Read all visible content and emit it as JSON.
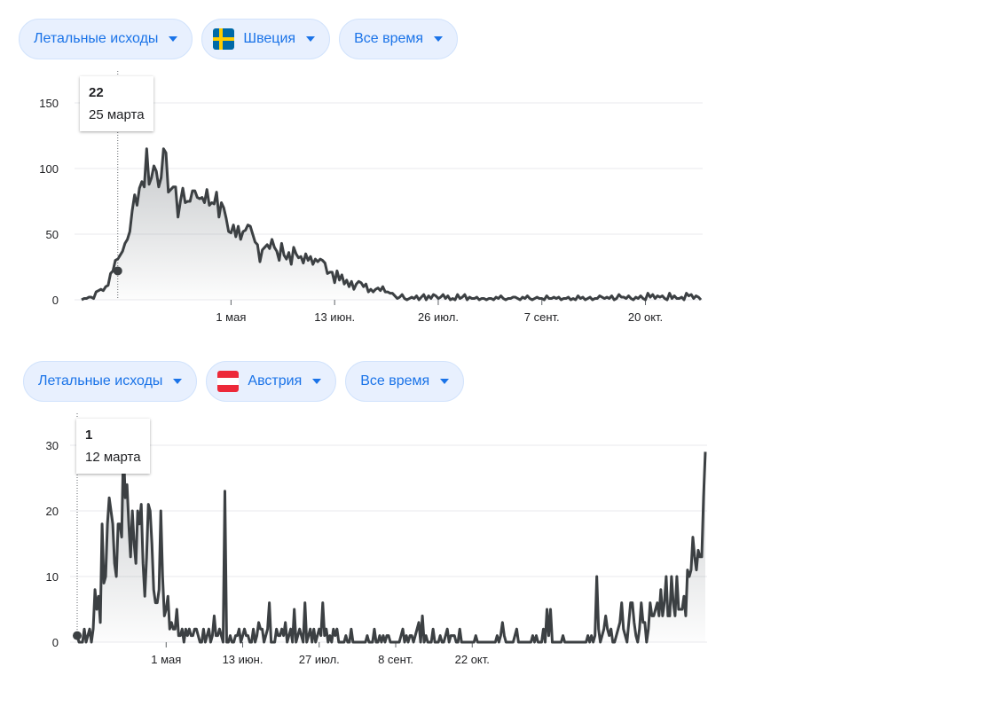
{
  "panels": [
    {
      "metric_label": "Летальные исходы",
      "country_label": "Швеция",
      "country_flag": "sweden-flag",
      "period_label": "Все время",
      "tooltip": {
        "value": "22",
        "date": "25 марта"
      }
    },
    {
      "metric_label": "Летальные исходы",
      "country_label": "Австрия",
      "country_flag": "austria-flag",
      "period_label": "Все время",
      "tooltip": {
        "value": "1",
        "date": "12 марта"
      }
    }
  ],
  "colors": {
    "accent": "#1a73e8",
    "chip_bg": "#e8f0fe",
    "line": "#3c4043",
    "grid": "#e8eaed"
  },
  "chart_data": [
    {
      "type": "area",
      "ylim": [
        0,
        150
      ],
      "yticks": [
        0,
        50,
        100,
        150
      ],
      "xticks": [
        {
          "x": 62,
          "label": "1 мая"
        },
        {
          "x": 105,
          "label": "13 июн."
        },
        {
          "x": 148,
          "label": "26 июл."
        },
        {
          "x": 191,
          "label": "7 сент."
        },
        {
          "x": 234,
          "label": "20 окт."
        }
      ],
      "highlight": {
        "x": 15,
        "y": 22
      },
      "series": [
        {
          "values": [
            0,
            1,
            1,
            2,
            2,
            1,
            6,
            7,
            8,
            7,
            10,
            11,
            20,
            22,
            30,
            31,
            34,
            37,
            43,
            46,
            52,
            68,
            80,
            72,
            85,
            90,
            86,
            115,
            88,
            93,
            102,
            98,
            86,
            93,
            115,
            112,
            82,
            84,
            86,
            86,
            63,
            75,
            85,
            74,
            75,
            75,
            83,
            83,
            78,
            77,
            78,
            74,
            84,
            72,
            74,
            73,
            82,
            63,
            74,
            70,
            62,
            52,
            51,
            57,
            48,
            56,
            46,
            52,
            53,
            57,
            56,
            50,
            44,
            42,
            29,
            38,
            40,
            42,
            39,
            46,
            40,
            37,
            30,
            43,
            34,
            31,
            36,
            27,
            40,
            35,
            32,
            33,
            28,
            35,
            30,
            33,
            27,
            31,
            29,
            31,
            30,
            28,
            20,
            21,
            21,
            13,
            22,
            15,
            19,
            12,
            15,
            10,
            14,
            8,
            12,
            14,
            13,
            10,
            12,
            6,
            8,
            6,
            8,
            9,
            7,
            10,
            6,
            6,
            5,
            5,
            3,
            1,
            2,
            4,
            1,
            0,
            1,
            2,
            1,
            3,
            0,
            2,
            4,
            0,
            3,
            1,
            4,
            3,
            1,
            2,
            4,
            1,
            3,
            0,
            1,
            0,
            4,
            1,
            2,
            4,
            0,
            2,
            1,
            1,
            2,
            0,
            1,
            1,
            0,
            1,
            1,
            0,
            2,
            1,
            3,
            1,
            0,
            1,
            1,
            2,
            2,
            1,
            0,
            2,
            1,
            3,
            1,
            0,
            1,
            2,
            1,
            1,
            0,
            3,
            1,
            1,
            2,
            1,
            2,
            0,
            1,
            1,
            2,
            0,
            1,
            0,
            3,
            1,
            2,
            0,
            1,
            2,
            0,
            1,
            1,
            3,
            2,
            1,
            2,
            1,
            3,
            0,
            1,
            4,
            2,
            2,
            1,
            3,
            1,
            0,
            2,
            1,
            3,
            1,
            0,
            5,
            2,
            4,
            1,
            3,
            2,
            3,
            1,
            0,
            5,
            1,
            3,
            1,
            1,
            2,
            0,
            5,
            3,
            4,
            1,
            3,
            2,
            0
          ]
        }
      ]
    },
    {
      "type": "area",
      "ylim": [
        0,
        30
      ],
      "yticks": [
        0,
        10,
        20,
        30
      ],
      "xticks": [
        {
          "x": 50,
          "label": "1 мая"
        },
        {
          "x": 93,
          "label": "13 июн."
        },
        {
          "x": 136,
          "label": "27 июл."
        },
        {
          "x": 179,
          "label": "8 сент."
        },
        {
          "x": 222,
          "label": "22 окт."
        }
      ],
      "highlight": {
        "x": 0,
        "y": 1
      },
      "series": [
        {
          "values": [
            1,
            0,
            0,
            0,
            2,
            0,
            1,
            2,
            0,
            2,
            8,
            5,
            7,
            3,
            18,
            9,
            10,
            18,
            22,
            20,
            18,
            12,
            10,
            18,
            18,
            16,
            30,
            22,
            24,
            18,
            13,
            20,
            15,
            12,
            20,
            18,
            21,
            12,
            7,
            13,
            21,
            20,
            15,
            8,
            6,
            6,
            8,
            20,
            10,
            4,
            5,
            7,
            2,
            3,
            2,
            2,
            5,
            1,
            1,
            2,
            0,
            2,
            1,
            2,
            1,
            1,
            2,
            2,
            1,
            0,
            0,
            2,
            0,
            1,
            2,
            0,
            1,
            4,
            1,
            1,
            2,
            1,
            0,
            23,
            0,
            0,
            1,
            0,
            0,
            1,
            1,
            2,
            0,
            1,
            2,
            1,
            1,
            0,
            0,
            2,
            0,
            1,
            3,
            2,
            2,
            0,
            1,
            2,
            6,
            0,
            0,
            0,
            2,
            1,
            1,
            2,
            1,
            3,
            0,
            1,
            2,
            0,
            5,
            0,
            1,
            2,
            1,
            0,
            6,
            0,
            1,
            2,
            0,
            2,
            0,
            1,
            2,
            1,
            6,
            1,
            2,
            0,
            1,
            0,
            2,
            1,
            2,
            0,
            0,
            0,
            0,
            1,
            0,
            0,
            2,
            0,
            0,
            0,
            0,
            0,
            0,
            0,
            0,
            1,
            0,
            0,
            0,
            2,
            0,
            0,
            1,
            0,
            1,
            0,
            1,
            1,
            0,
            0,
            0,
            0,
            0,
            0,
            1,
            2,
            0,
            1,
            0,
            1,
            1,
            0,
            1,
            2,
            3,
            0,
            4,
            0,
            1,
            0,
            0,
            0,
            2,
            0,
            0,
            0,
            1,
            0,
            0,
            1,
            2,
            0,
            1,
            1,
            1,
            0,
            0,
            2,
            0,
            0,
            0,
            0,
            0,
            0,
            0,
            0,
            1,
            0,
            0,
            0,
            0,
            0,
            0,
            0,
            0,
            0,
            0,
            0,
            1,
            0,
            1,
            3,
            1,
            0,
            0,
            0,
            0,
            0,
            1,
            2,
            0,
            0,
            0,
            0,
            0,
            0,
            0,
            0,
            1,
            0,
            1,
            0,
            0,
            0,
            2,
            0,
            5,
            1,
            5,
            0,
            0,
            0,
            0,
            0,
            0,
            1,
            0,
            0,
            0,
            0,
            0,
            0,
            0,
            0,
            0,
            0,
            0,
            0,
            0,
            1,
            0,
            1,
            0,
            1,
            10,
            2,
            0,
            1,
            2,
            4,
            2,
            1,
            2,
            0,
            0,
            1,
            2,
            3,
            6,
            2,
            1,
            0,
            3,
            6,
            6,
            3,
            1,
            0,
            2,
            6,
            3,
            3,
            0,
            2,
            6,
            4,
            4,
            5,
            6,
            4,
            8,
            4,
            6,
            10,
            4,
            4,
            10,
            6,
            4,
            10,
            5,
            5,
            5,
            7,
            4,
            11,
            10,
            11,
            16,
            13,
            11,
            14,
            13,
            13,
            22,
            29
          ]
        }
      ]
    }
  ]
}
